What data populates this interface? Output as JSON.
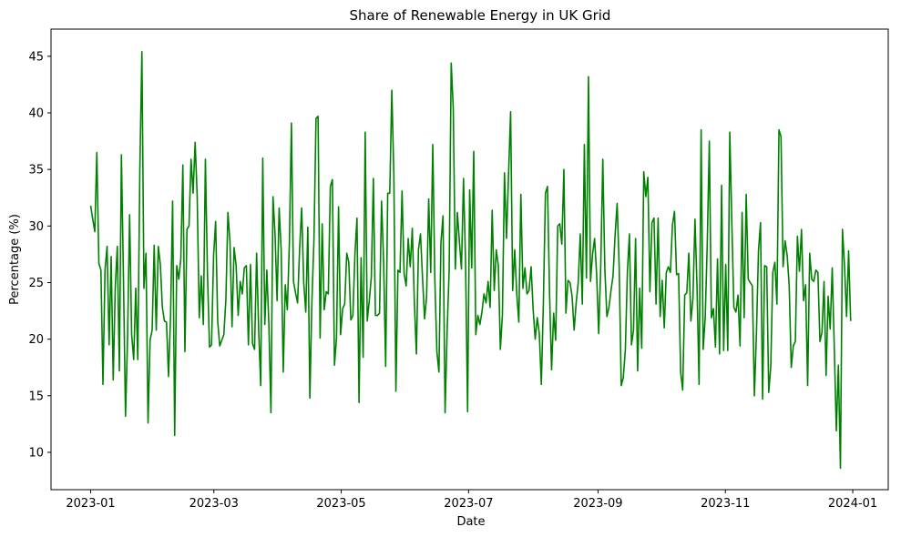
{
  "chart_data": {
    "type": "line",
    "title": "Share of Renewable Energy in UK Grid",
    "xlabel": "Date",
    "ylabel": "Percentage (%)",
    "x_start": "2023-01-01",
    "x_end": "2023-12-31",
    "xlim": [
      "2022-12-13",
      "2024-01-18"
    ],
    "ylim": [
      6.7,
      47.4
    ],
    "grid": false,
    "line_color": "#008000",
    "x_ticks": [
      {
        "date": "2023-01-01",
        "label": "2023-01"
      },
      {
        "date": "2023-03-01",
        "label": "2023-03"
      },
      {
        "date": "2023-05-01",
        "label": "2023-05"
      },
      {
        "date": "2023-07-01",
        "label": "2023-07"
      },
      {
        "date": "2023-09-01",
        "label": "2023-09"
      },
      {
        "date": "2023-11-01",
        "label": "2023-11"
      },
      {
        "date": "2024-01-01",
        "label": "2024-01"
      }
    ],
    "y_ticks": [
      10,
      15,
      20,
      25,
      30,
      35,
      40,
      45
    ],
    "series": [
      {
        "values": [
          31.8,
          30.6,
          29.5,
          36.5,
          26.7,
          26.1,
          16.0,
          26.1,
          28.2,
          19.5,
          27.3,
          16.4,
          24.6,
          28.2,
          17.2,
          36.3,
          25.4,
          13.2,
          20.1,
          31.0,
          20.4,
          18.2,
          24.5,
          18.2,
          35.0,
          45.4,
          24.5,
          27.6,
          12.6,
          19.9,
          20.8,
          28.3,
          20.8,
          28.2,
          26.6,
          22.8,
          21.6,
          21.5,
          16.7,
          22.1,
          32.2,
          11.5,
          26.5,
          25.3,
          27.1,
          35.4,
          18.9,
          29.7,
          30.0,
          35.9,
          32.9,
          37.4,
          32.6,
          21.9,
          25.6,
          21.3,
          35.9,
          25.9,
          19.3,
          19.5,
          27.4,
          30.4,
          21.6,
          19.4,
          19.9,
          20.4,
          23.5,
          31.2,
          28.6,
          21.1,
          28.1,
          26.5,
          22.1,
          25.1,
          24.0,
          26.3,
          26.5,
          19.5,
          26.6,
          19.6,
          19.1,
          27.6,
          20.9,
          15.9,
          36.0,
          21.3,
          26.1,
          21.2,
          13.5,
          32.6,
          29.3,
          23.4,
          31.6,
          27.8,
          17.1,
          24.8,
          22.6,
          28.5,
          39.1,
          25.1,
          24.1,
          23.2,
          28.0,
          31.6,
          25.0,
          22.4,
          29.9,
          14.8,
          23.4,
          28.8,
          39.5,
          39.7,
          20.1,
          30.2,
          22.6,
          24.2,
          24.0,
          33.5,
          34.1,
          17.7,
          20.1,
          31.7,
          20.4,
          22.7,
          23.1,
          27.6,
          26.8,
          21.7,
          22.1,
          27.5,
          30.7,
          14.4,
          27.2,
          18.4,
          38.3,
          21.6,
          23.4,
          25.5,
          34.2,
          22.1,
          22.1,
          22.3,
          32.2,
          26.9,
          17.6,
          32.9,
          32.9,
          42.0,
          34.5,
          15.4,
          26.1,
          25.9,
          33.1,
          25.8,
          24.7,
          28.9,
          26.4,
          29.8,
          23.3,
          18.7,
          27.9,
          29.3,
          25.4,
          21.8,
          23.8,
          32.4,
          25.9,
          37.2,
          25.3,
          18.9,
          17.1,
          28.6,
          30.9,
          13.5,
          20.7,
          26.1,
          44.4,
          40.4,
          26.2,
          31.2,
          28.6,
          26.2,
          34.2,
          26.8,
          13.6,
          33.2,
          26.3,
          36.6,
          20.4,
          22.1,
          21.3,
          22.4,
          24.0,
          23.2,
          25.1,
          22.8,
          31.4,
          24.3,
          27.9,
          26.5,
          19.1,
          22.2,
          34.7,
          28.9,
          34.6,
          40.1,
          24.3,
          27.9,
          24.0,
          21.5,
          32.8,
          24.5,
          26.3,
          24.0,
          24.3,
          26.4,
          22.6,
          20.0,
          21.9,
          20.5,
          16.0,
          23.3,
          32.9,
          33.5,
          24.1,
          17.3,
          22.3,
          19.9,
          30.0,
          30.2,
          28.4,
          35.0,
          22.3,
          25.2,
          25.0,
          23.8,
          20.8,
          23.2,
          25.0,
          29.3,
          23.1,
          37.2,
          25.4,
          43.2,
          25.1,
          27.5,
          28.9,
          25.7,
          20.5,
          26.5,
          35.9,
          26.2,
          22.0,
          22.8,
          24.3,
          25.6,
          29.2,
          32.0,
          26.4,
          15.9,
          16.6,
          19.0,
          25.9,
          29.3,
          19.5,
          20.8,
          28.9,
          17.2,
          24.5,
          19.2,
          34.8,
          32.6,
          34.3,
          24.2,
          30.3,
          30.7,
          23.1,
          30.7,
          22.0,
          25.2,
          21.0,
          25.9,
          26.4,
          25.9,
          30.1,
          31.3,
          25.7,
          25.8,
          17.1,
          15.5,
          23.9,
          24.1,
          27.6,
          21.6,
          23.6,
          30.6,
          24.6,
          16.0,
          38.5,
          19.1,
          21.9,
          28.5,
          37.5,
          21.9,
          22.7,
          19.3,
          27.1,
          18.7,
          33.6,
          19.0,
          26.6,
          19.0,
          38.3,
          30.2,
          22.8,
          22.4,
          23.9,
          19.4,
          31.2,
          21.9,
          32.8,
          25.3,
          25.0,
          24.7,
          15.0,
          20.5,
          27.8,
          30.3,
          14.7,
          26.5,
          26.4,
          15.3,
          17.6,
          25.9,
          26.8,
          23.1,
          38.5,
          37.9,
          26.4,
          28.7,
          27.4,
          24.7,
          17.5,
          19.4,
          19.8,
          29.1,
          26.0,
          29.7,
          23.4,
          24.8,
          15.9,
          27.6,
          25.3,
          25.1,
          26.1,
          25.9,
          19.8,
          20.6,
          25.1,
          16.8,
          23.8,
          20.9,
          26.3,
          19.3,
          11.9,
          17.7,
          8.6,
          29.7,
          26.5,
          22.0,
          27.8,
          21.6
        ]
      }
    ]
  }
}
